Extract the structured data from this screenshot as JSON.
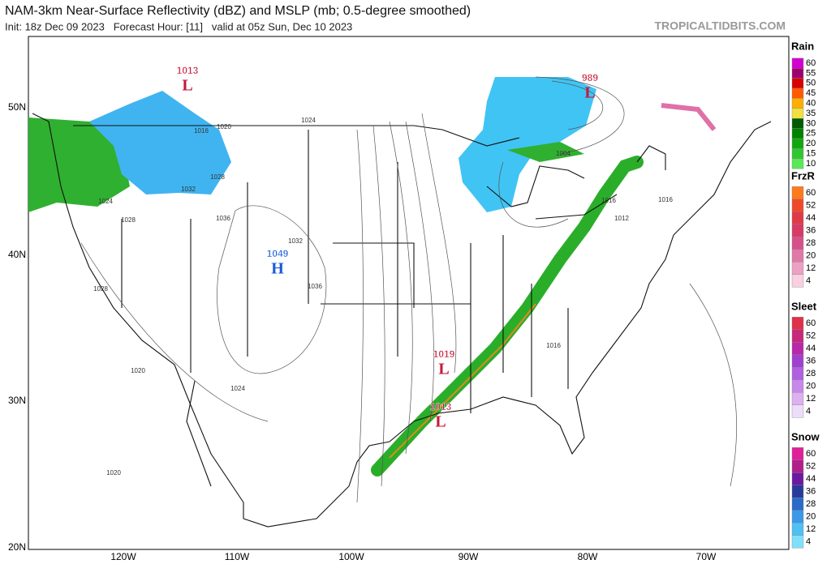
{
  "header": {
    "title": "NAM-3km Near-Surface Reflectivity (dBZ) and MSLP (mb; 0.5-degree smoothed)",
    "subtitle": "Init: 18z Dec 09 2023   Forecast Hour: [11]   valid at 05z Sun, Dec 10 2023",
    "site": "TROPICALTIDBITS.COM"
  },
  "map": {
    "lat_labels": [
      "50N",
      "40N",
      "30N",
      "20N"
    ],
    "lon_labels": [
      "120W",
      "110W",
      "100W",
      "90W",
      "80W",
      "70W"
    ],
    "pressure_centers": [
      {
        "type": "L",
        "value": "1013"
      },
      {
        "type": "L",
        "value": "989"
      },
      {
        "type": "H",
        "value": "1049"
      },
      {
        "type": "L",
        "value": "1019"
      },
      {
        "type": "L",
        "value": "1013"
      }
    ],
    "isobar_labels": [
      "1016",
      "1020",
      "1024",
      "1028",
      "1032",
      "1036",
      "1024",
      "1028",
      "1032",
      "1036",
      "1028",
      "1020",
      "1024",
      "1020",
      "1016",
      "1012",
      "1016",
      "1016",
      "1004"
    ]
  },
  "legend": [
    {
      "title": "Rain",
      "levels": [
        "60",
        "55",
        "50",
        "45",
        "40",
        "35",
        "30",
        "25",
        "20",
        "15",
        "10"
      ],
      "colors": [
        "#d200d2",
        "#a0006e",
        "#d80000",
        "#ff5a00",
        "#ffae00",
        "#f0e040",
        "#005a00",
        "#008200",
        "#10a810",
        "#30c830",
        "#58e858"
      ]
    },
    {
      "title": "FrzR",
      "levels": [
        "60",
        "52",
        "44",
        "36",
        "28",
        "20",
        "12",
        "4"
      ],
      "colors": [
        "#ff7a1a",
        "#f04a2a",
        "#e03a48",
        "#d83a66",
        "#d8508a",
        "#e078a8",
        "#eca0c4",
        "#f8d0e0"
      ]
    },
    {
      "title": "Sleet",
      "levels": [
        "60",
        "52",
        "44",
        "36",
        "28",
        "20",
        "12",
        "4"
      ],
      "colors": [
        "#e0304a",
        "#c8287a",
        "#b828a8",
        "#a040d0",
        "#b060e0",
        "#c888ea",
        "#dcb0f2",
        "#eeddf8"
      ]
    },
    {
      "title": "Snow",
      "levels": [
        "60",
        "52",
        "44",
        "36",
        "28",
        "20",
        "12",
        "4"
      ],
      "colors": [
        "#e0209a",
        "#b0208a",
        "#6a1aa0",
        "#2a3a9a",
        "#2a6ac8",
        "#3a98e8",
        "#50c0f2",
        "#80e0fc"
      ]
    }
  ]
}
